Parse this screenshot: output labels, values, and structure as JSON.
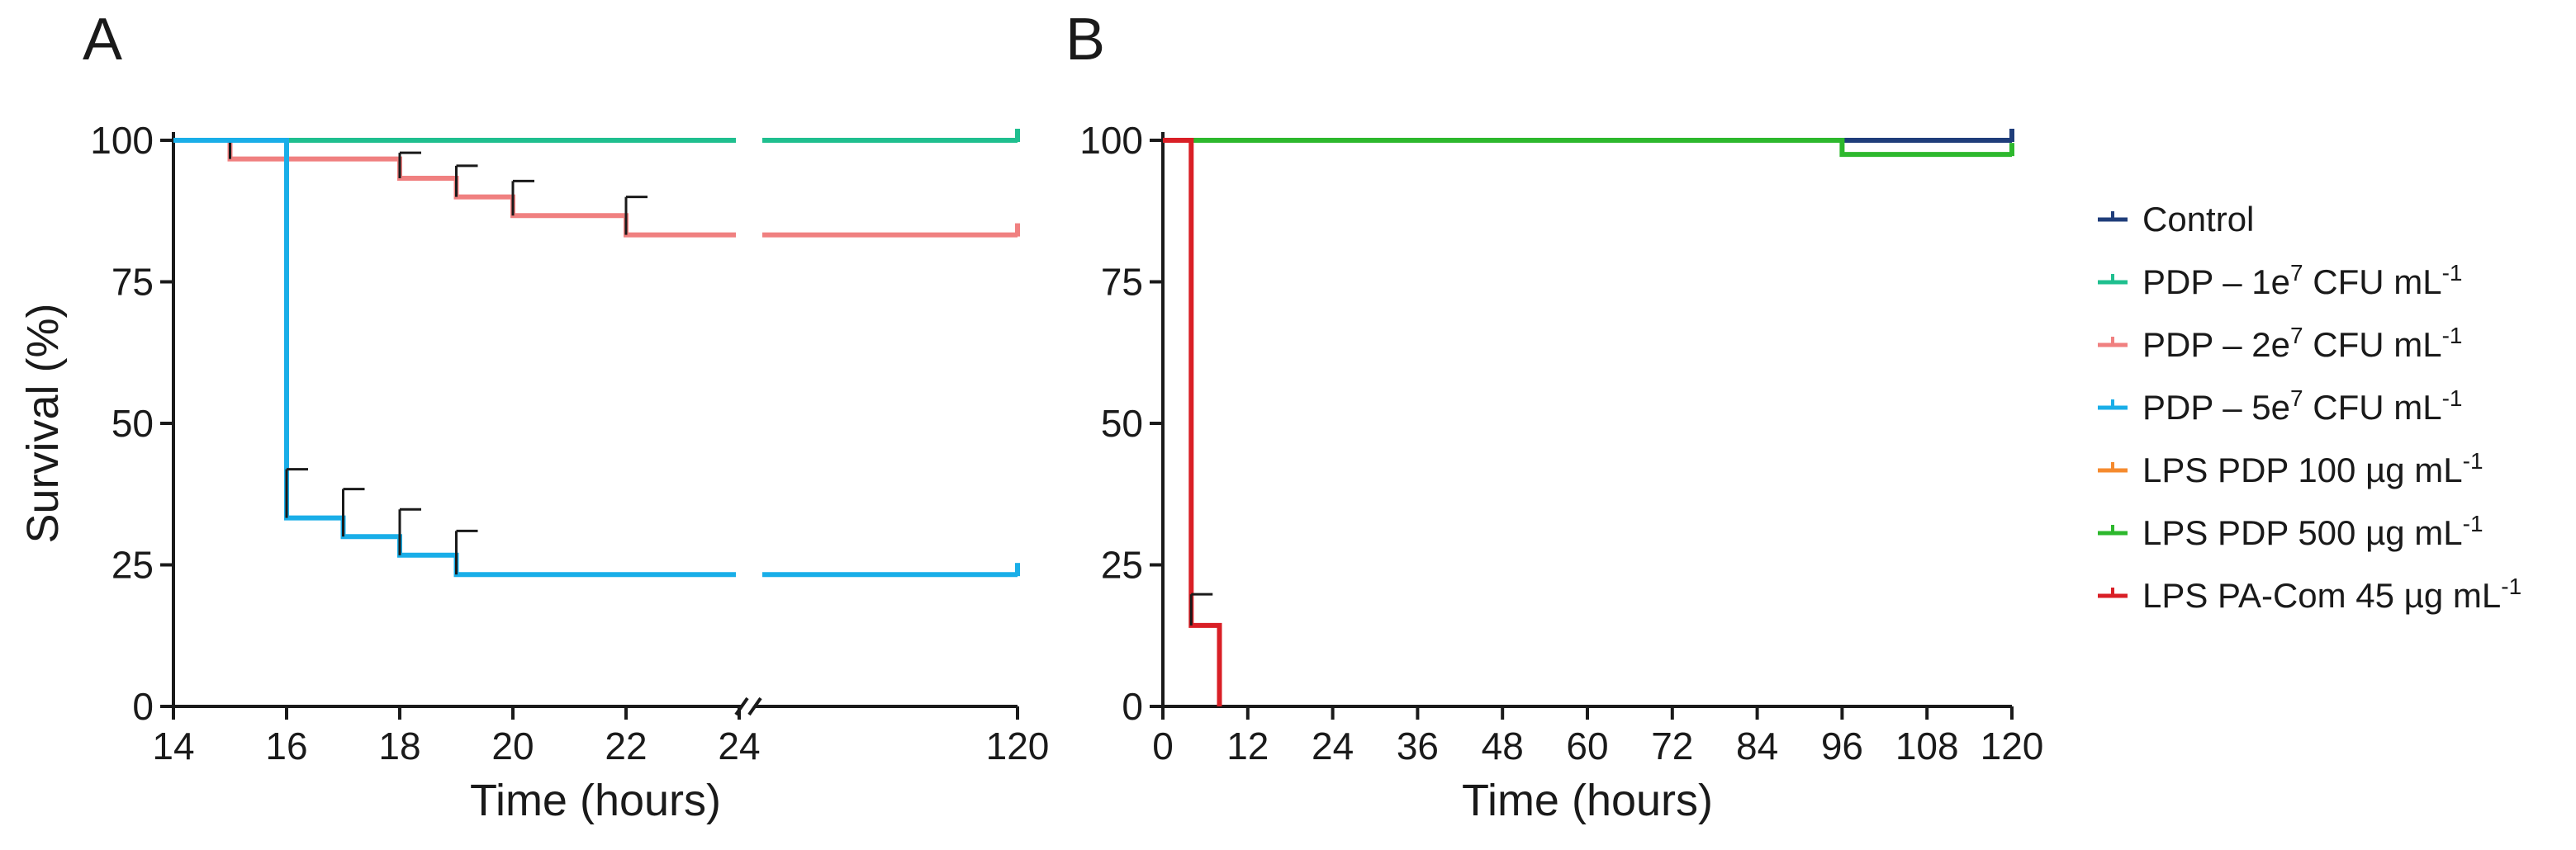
{
  "legend": [
    {
      "parts": [
        "Control"
      ],
      "color": "#1f3d7a"
    },
    {
      "parts": [
        "PDP – 1e",
        "7",
        " CFU mL",
        "-1"
      ],
      "color": "#1fbf8f"
    },
    {
      "parts": [
        "PDP – 2e",
        "7",
        " CFU mL",
        "-1"
      ],
      "color": "#f08080"
    },
    {
      "parts": [
        "PDP – 5e",
        "7",
        " CFU mL",
        "-1"
      ],
      "color": "#19aee8"
    },
    {
      "parts": [
        "LPS PDP 100 µg mL",
        "-1"
      ],
      "color": "#f58a2e"
    },
    {
      "parts": [
        "LPS PDP 500 µg mL",
        "-1"
      ],
      "color": "#2db82d"
    },
    {
      "parts": [
        "LPS PA-Com 45 µg mL",
        "-1"
      ],
      "color": "#d91f26"
    }
  ],
  "chart_data": [
    {
      "panel": "A",
      "type": "line",
      "step": true,
      "ylabel": "Survival (%)",
      "xlabel": "Time (hours)",
      "ylim": [
        0,
        100
      ],
      "yticks": [
        0,
        25,
        50,
        75,
        100
      ],
      "xticks": [
        14,
        16,
        18,
        20,
        22,
        24,
        120
      ],
      "xlim": [
        14,
        120
      ],
      "axis_break": [
        24,
        120
      ],
      "grid": false,
      "series": [
        {
          "name": "PDP – 1e7 CFU mL-1",
          "color": "#1fbf8f",
          "x": [
            14,
            120
          ],
          "y": [
            100,
            100
          ],
          "errors": []
        },
        {
          "name": "PDP – 2e7 CFU mL-1",
          "color": "#f08080",
          "x": [
            14,
            15,
            18,
            19,
            20,
            22,
            120
          ],
          "y": [
            100,
            96.7,
            93.3,
            90,
            86.7,
            83.3,
            83.3
          ],
          "errors": [
            {
              "x": 15,
              "y": 96.7,
              "upper": 100
            },
            {
              "x": 18,
              "y": 93.3,
              "upper": 97.8
            },
            {
              "x": 19,
              "y": 90,
              "upper": 95.5
            },
            {
              "x": 20,
              "y": 86.7,
              "upper": 92.8
            },
            {
              "x": 22,
              "y": 83.3,
              "upper": 90
            }
          ]
        },
        {
          "name": "PDP – 5e7 CFU mL-1",
          "color": "#19aee8",
          "x": [
            14,
            16,
            17,
            18,
            19,
            120
          ],
          "y": [
            100,
            33.3,
            30,
            26.7,
            23.3,
            23.3
          ],
          "errors": [
            {
              "x": 16,
              "y": 33.3,
              "upper": 41.9
            },
            {
              "x": 17,
              "y": 30,
              "upper": 38.4
            },
            {
              "x": 18,
              "y": 26.7,
              "upper": 34.8
            },
            {
              "x": 19,
              "y": 23.3,
              "upper": 31
            }
          ]
        }
      ]
    },
    {
      "panel": "B",
      "type": "line",
      "step": true,
      "ylabel": "",
      "xlabel": "Time (hours)",
      "ylim": [
        0,
        100
      ],
      "yticks": [
        0,
        25,
        50,
        75,
        100
      ],
      "xticks": [
        0,
        12,
        24,
        36,
        48,
        60,
        72,
        84,
        96,
        108,
        120
      ],
      "xlim": [
        0,
        120
      ],
      "grid": false,
      "series": [
        {
          "name": "Control",
          "color": "#1f3d7a",
          "x": [
            0,
            120
          ],
          "y": [
            100,
            100
          ],
          "errors": []
        },
        {
          "name": "LPS PDP 100 µg mL-1",
          "color": "#f58a2e",
          "x": [
            0,
            120
          ],
          "y": [
            100,
            100
          ],
          "errors": []
        },
        {
          "name": "LPS PDP 500 µg mL-1",
          "color": "#2db82d",
          "x": [
            0,
            96,
            120
          ],
          "y": [
            100,
            97.5,
            97.5
          ],
          "errors": []
        },
        {
          "name": "LPS PA-Com 45 µg mL-1",
          "color": "#d91f26",
          "x": [
            0,
            4,
            8
          ],
          "y": [
            100,
            14.3,
            0
          ],
          "errors": [
            {
              "x": 4,
              "y": 14.3,
              "upper": 19.8
            }
          ]
        }
      ]
    }
  ]
}
